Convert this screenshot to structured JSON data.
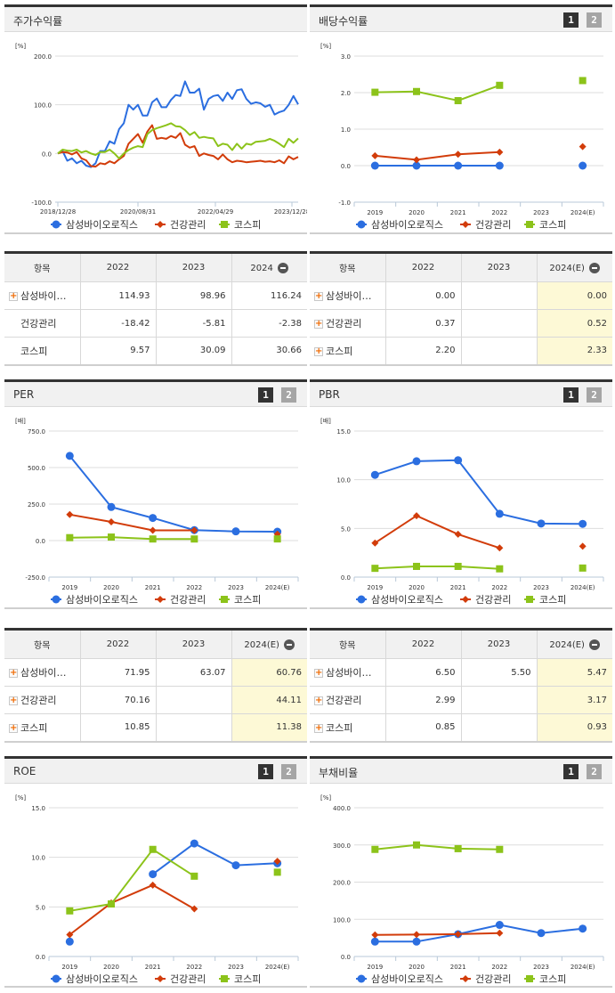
{
  "colors": {
    "samsung": "#2b6ee0",
    "health": "#d23c0a",
    "kospi": "#8cc31a",
    "grid": "#dddddd",
    "estimate_bg": "#fdf9d6"
  },
  "series_names": [
    "삼성바이오로직스",
    "건강관리",
    "코스피"
  ],
  "page_buttons": [
    "1",
    "2"
  ],
  "stock_return": {
    "title": "주가수익률",
    "table": {
      "headers": [
        "항목",
        "2022",
        "2023",
        "2024"
      ],
      "rows": [
        {
          "name": "삼성바이…",
          "values": [
            "114.93",
            "98.96",
            "116.24"
          ],
          "expandable": true
        },
        {
          "name": "건강관리",
          "values": [
            "-18.42",
            "-5.81",
            "-2.38"
          ],
          "expandable": false
        },
        {
          "name": "코스피",
          "values": [
            "9.57",
            "30.09",
            "30.66"
          ],
          "expandable": false
        }
      ]
    }
  },
  "dividend_yield": {
    "title": "배당수익률",
    "table": {
      "headers": [
        "항목",
        "2022",
        "2023",
        "2024(E)"
      ],
      "rows": [
        {
          "name": "삼성바이…",
          "values": [
            "0.00",
            "",
            "0.00"
          ],
          "expandable": true
        },
        {
          "name": "건강관리",
          "values": [
            "0.37",
            "",
            "0.52"
          ],
          "expandable": true
        },
        {
          "name": "코스피",
          "values": [
            "2.20",
            "",
            "2.33"
          ],
          "expandable": true
        }
      ]
    }
  },
  "per": {
    "title": "PER",
    "table": {
      "headers": [
        "항목",
        "2022",
        "2023",
        "2024(E)"
      ],
      "rows": [
        {
          "name": "삼성바이…",
          "values": [
            "71.95",
            "63.07",
            "60.76"
          ],
          "expandable": true
        },
        {
          "name": "건강관리",
          "values": [
            "70.16",
            "",
            "44.11"
          ],
          "expandable": true
        },
        {
          "name": "코스피",
          "values": [
            "10.85",
            "",
            "11.38"
          ],
          "expandable": true
        }
      ]
    }
  },
  "pbr": {
    "title": "PBR",
    "table": {
      "headers": [
        "항목",
        "2022",
        "2023",
        "2024(E)"
      ],
      "rows": [
        {
          "name": "삼성바이…",
          "values": [
            "6.50",
            "5.50",
            "5.47"
          ],
          "expandable": true
        },
        {
          "name": "건강관리",
          "values": [
            "2.99",
            "",
            "3.17"
          ],
          "expandable": true
        },
        {
          "name": "코스피",
          "values": [
            "0.85",
            "",
            "0.93"
          ],
          "expandable": true
        }
      ]
    }
  },
  "roe": {
    "title": "ROE"
  },
  "debt_ratio": {
    "title": "부채비율"
  },
  "chart_data": [
    {
      "id": "stock_return",
      "type": "line",
      "title": "주가수익률",
      "ylabel": "[%]",
      "ylim": [
        -100,
        200
      ],
      "yticks": [
        "200.0",
        "100.0",
        "0.0",
        "-100.0"
      ],
      "xticks": [
        "2018/12/28",
        "2020/08/31",
        "2022/04/29",
        "2023/12/28"
      ],
      "legend": [
        "삼성바이오로직스",
        "건강관리",
        "코스피"
      ],
      "series": [
        {
          "name": "삼성바이오로직스",
          "values": [
            0,
            5,
            -15,
            -10,
            -20,
            -15,
            -25,
            -28,
            -20,
            5,
            5,
            25,
            20,
            50,
            62,
            100,
            90,
            100,
            78,
            78,
            105,
            113,
            95,
            95,
            110,
            120,
            118,
            148,
            125,
            125,
            133,
            90,
            112,
            118,
            120,
            108,
            125,
            112,
            130,
            132,
            112,
            102,
            105,
            103,
            96,
            100,
            80,
            85,
            88,
            100,
            118,
            101
          ]
        },
        {
          "name": "건강관리",
          "values": [
            0,
            3,
            2,
            -2,
            3,
            -10,
            -14,
            -26,
            -27,
            -20,
            -22,
            -16,
            -20,
            -12,
            -5,
            20,
            30,
            40,
            22,
            45,
            58,
            30,
            32,
            30,
            36,
            32,
            42,
            18,
            12,
            15,
            -5,
            0,
            -3,
            -5,
            -12,
            -2,
            -12,
            -18,
            -15,
            -16,
            -18,
            -17,
            -16,
            -15,
            -17,
            -16,
            -18,
            -14,
            -20,
            -6,
            -12,
            -7
          ]
        },
        {
          "name": "코스피",
          "values": [
            0,
            8,
            6,
            5,
            8,
            2,
            5,
            0,
            -3,
            3,
            3,
            8,
            0,
            -10,
            0,
            7,
            12,
            15,
            13,
            40,
            48,
            52,
            55,
            58,
            62,
            56,
            55,
            48,
            38,
            44,
            32,
            34,
            32,
            31,
            15,
            20,
            18,
            7,
            20,
            10,
            20,
            18,
            24,
            25,
            26,
            30,
            26,
            20,
            13,
            30,
            22,
            31
          ]
        }
      ]
    },
    {
      "id": "dividend_yield",
      "type": "line",
      "title": "배당수익률",
      "ylabel": "[%]",
      "ylim": [
        -1,
        3
      ],
      "yticks": [
        "3.0",
        "2.0",
        "1.0",
        "0.0",
        "-1.0"
      ],
      "categories": [
        "2019",
        "2020",
        "2021",
        "2022",
        "2023",
        "2024(E)"
      ],
      "legend": [
        "삼성바이오로직스",
        "건강관리",
        "코스피"
      ],
      "series": [
        {
          "name": "삼성바이오로직스",
          "values": [
            0.0,
            0.0,
            0.0,
            0.0,
            null,
            0.0
          ]
        },
        {
          "name": "건강관리",
          "values": [
            0.27,
            0.16,
            0.31,
            0.37,
            null,
            0.52
          ]
        },
        {
          "name": "코스피",
          "values": [
            2.01,
            2.03,
            1.78,
            2.2,
            null,
            2.33
          ]
        }
      ]
    },
    {
      "id": "per",
      "type": "line",
      "title": "PER",
      "ylabel": "[배]",
      "ylim": [
        -250,
        750
      ],
      "yticks": [
        "750.0",
        "500.0",
        "250.0",
        "0.0",
        "-250.0"
      ],
      "categories": [
        "2019",
        "2020",
        "2021",
        "2022",
        "2023",
        "2024(E)"
      ],
      "legend": [
        "삼성바이오로직스",
        "건강관리",
        "코스피"
      ],
      "series": [
        {
          "name": "삼성바이오로직스",
          "values": [
            580,
            230,
            155,
            71.95,
            63.07,
            60.76
          ]
        },
        {
          "name": "건강관리",
          "values": [
            178,
            128,
            70,
            70.16,
            null,
            44.11
          ]
        },
        {
          "name": "코스피",
          "values": [
            20,
            24,
            11,
            10.85,
            null,
            11.38
          ]
        }
      ]
    },
    {
      "id": "pbr",
      "type": "line",
      "title": "PBR",
      "ylabel": "[배]",
      "ylim": [
        0,
        15
      ],
      "yticks": [
        "15.0",
        "10.0",
        "5.0",
        "0.0"
      ],
      "categories": [
        "2019",
        "2020",
        "2021",
        "2022",
        "2023",
        "2024(E)"
      ],
      "legend": [
        "삼성바이오로직스",
        "건강관리",
        "코스피"
      ],
      "series": [
        {
          "name": "삼성바이오로직스",
          "values": [
            10.5,
            11.9,
            12.0,
            6.5,
            5.5,
            5.47
          ]
        },
        {
          "name": "건강관리",
          "values": [
            3.5,
            6.3,
            4.4,
            2.99,
            null,
            3.17
          ]
        },
        {
          "name": "코스피",
          "values": [
            0.9,
            1.1,
            1.1,
            0.85,
            null,
            0.93
          ]
        }
      ]
    },
    {
      "id": "roe",
      "type": "line",
      "title": "ROE",
      "ylabel": "[%]",
      "ylim": [
        0,
        15
      ],
      "yticks": [
        "15.0",
        "10.0",
        "5.0",
        "0.0"
      ],
      "categories": [
        "2019",
        "2020",
        "2021",
        "2022",
        "2023",
        "2024(E)"
      ],
      "legend": [
        "삼성바이오로직스",
        "건강관리",
        "코스피"
      ],
      "series": [
        {
          "name": "삼성바이오로직스",
          "values": [
            1.5,
            null,
            8.3,
            11.4,
            9.2,
            9.4
          ]
        },
        {
          "name": "건강관리",
          "values": [
            2.2,
            5.4,
            7.2,
            4.8,
            null,
            9.6
          ]
        },
        {
          "name": "코스피",
          "values": [
            4.6,
            5.3,
            10.8,
            8.1,
            null,
            8.5
          ]
        }
      ]
    },
    {
      "id": "debt_ratio",
      "type": "line",
      "title": "부채비율",
      "ylabel": "[%]",
      "ylim": [
        0,
        400
      ],
      "yticks": [
        "400.0",
        "300.0",
        "200.0",
        "100.0",
        "0.0"
      ],
      "categories": [
        "2019",
        "2020",
        "2021",
        "2022",
        "2023",
        "2024(E)"
      ],
      "legend": [
        "삼성바이오로직스",
        "건강관리",
        "코스피"
      ],
      "series": [
        {
          "name": "삼성바이오로직스",
          "values": [
            40,
            40,
            60,
            85,
            63,
            75
          ]
        },
        {
          "name": "건강관리",
          "values": [
            58,
            59,
            60,
            63,
            null,
            null
          ]
        },
        {
          "name": "코스피",
          "values": [
            288,
            300,
            290,
            288,
            null,
            null
          ]
        }
      ]
    }
  ]
}
